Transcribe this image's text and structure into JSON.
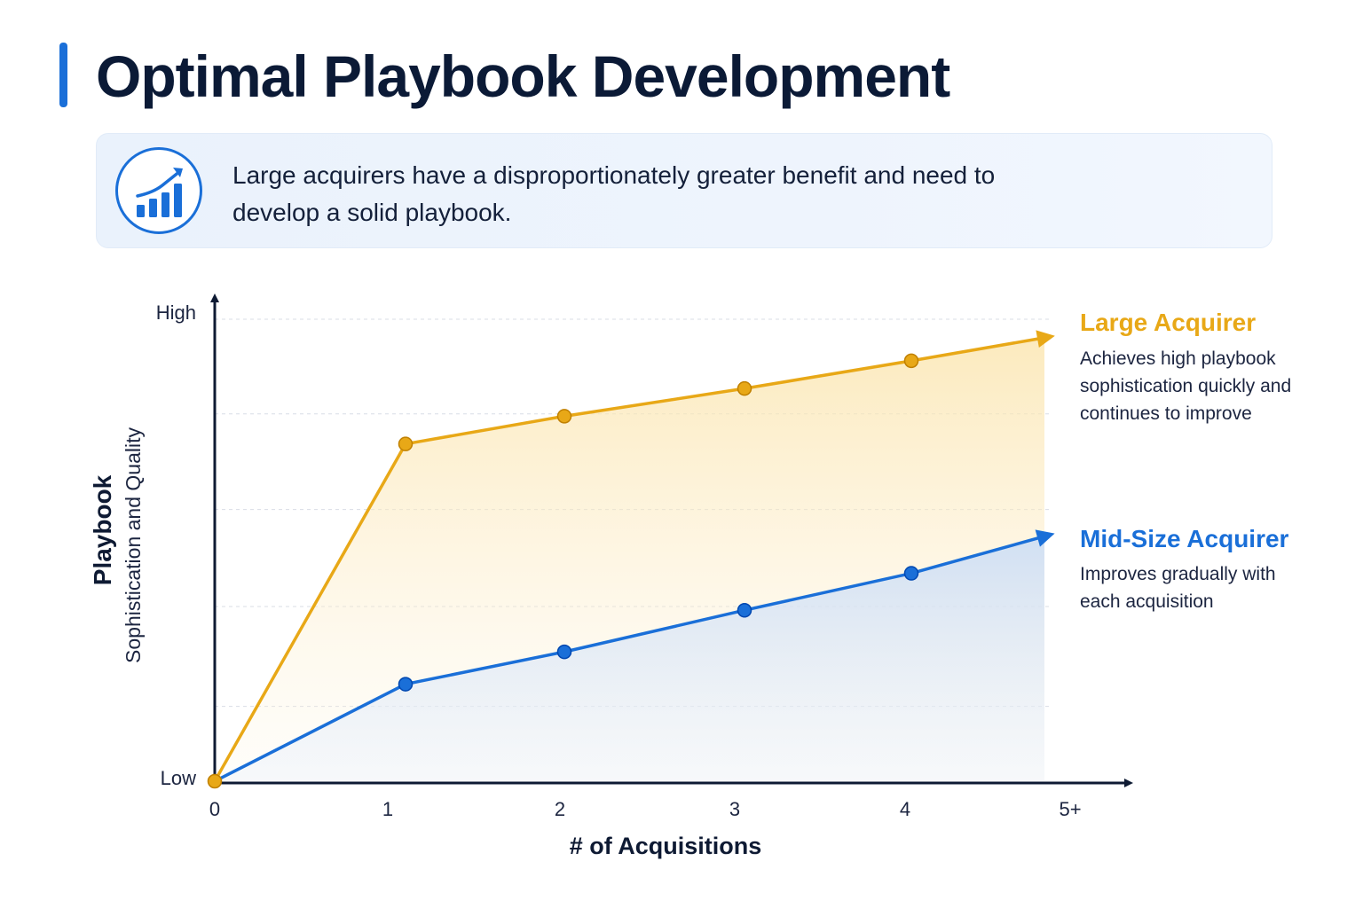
{
  "title": "Optimal Playbook Development",
  "callout": {
    "icon": "growth-chart-icon",
    "text": "Large acquirers have a disproportionately greater benefit and need to develop a solid playbook."
  },
  "colors": {
    "accent": "#1a6fd8",
    "large": "#e8a817",
    "mid": "#1a6fd8",
    "axis": "#0e1a33"
  },
  "legend": {
    "large": {
      "title": "Large Acquirer",
      "desc": "Achieves high playbook sophistication quickly and continues to improve"
    },
    "mid": {
      "title": "Mid-Size Acquirer",
      "desc": "Improves gradually with each acquisition"
    }
  },
  "chart_data": {
    "type": "line",
    "x": [
      "0",
      "1",
      "2",
      "3",
      "4",
      "5+"
    ],
    "xlabel": "# of Acquisitions",
    "ylabel": "Playbook",
    "ylabel_sub": "Sophistication and Quality",
    "y_tick_labels": {
      "low": "Low",
      "high": "High"
    },
    "ylim": [
      0,
      100
    ],
    "grid": true,
    "series": [
      {
        "name": "Large Acquirer",
        "values": [
          0,
          73,
          79,
          85,
          91,
          96
        ]
      },
      {
        "name": "Mid-Size Acquirer",
        "values": [
          0,
          21,
          28,
          37,
          45,
          53
        ]
      }
    ]
  }
}
